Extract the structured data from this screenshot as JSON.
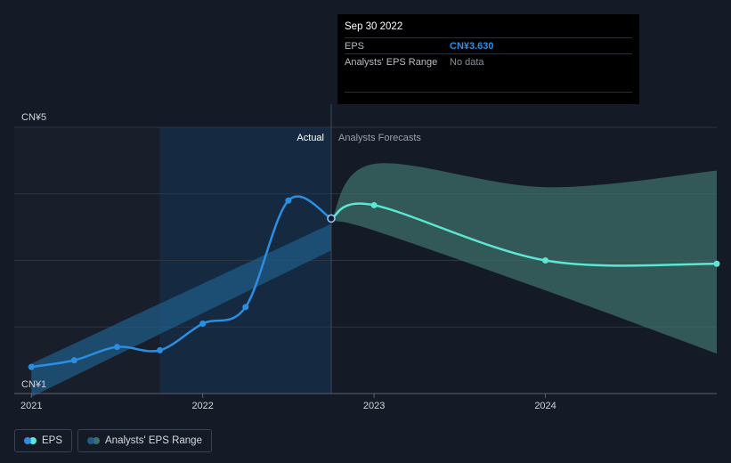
{
  "tooltip": {
    "date": "Sep 30 2022",
    "eps_label": "EPS",
    "eps_value": "CN¥3.630",
    "range_label": "Analysts' EPS Range",
    "range_value": "No data"
  },
  "labels": {
    "actual": "Actual",
    "forecast": "Analysts Forecasts"
  },
  "legend": [
    {
      "label": "EPS",
      "colors": [
        "#2b8ee0",
        "#5ce6d3"
      ]
    },
    {
      "label": "Analysts' EPS Range",
      "colors": [
        "#1f5b86",
        "#3c6f6a"
      ]
    }
  ],
  "colors": {
    "background": "#151b26",
    "eps_actual": "#2b8ee0",
    "eps_forecast": "#5ce6d3",
    "band_actual": "#1f5b86",
    "band_forecast": "#3c6f6a",
    "grid": "#2e3440"
  },
  "chart_data": {
    "type": "line",
    "y_tick_labels": [
      "CN¥5",
      "CN¥1"
    ],
    "ylim": [
      1,
      5
    ],
    "y_gridlines": [
      1,
      2,
      3,
      4,
      5
    ],
    "x_ticks": [
      "2021",
      "2022",
      "2023",
      "2024"
    ],
    "xlim": [
      2020.9,
      2025.0
    ],
    "split_x": 2022.75,
    "highlight_from_x": 2021.75,
    "series": [
      {
        "name": "EPS",
        "kind": "actual",
        "points": [
          [
            2021.0,
            1.4
          ],
          [
            2021.25,
            1.5
          ],
          [
            2021.5,
            1.7
          ],
          [
            2021.75,
            1.65
          ],
          [
            2022.0,
            2.05
          ],
          [
            2022.25,
            2.3
          ],
          [
            2022.5,
            3.9
          ],
          [
            2022.75,
            3.63
          ]
        ]
      },
      {
        "name": "EPS",
        "kind": "forecast",
        "points": [
          [
            2022.75,
            3.63
          ],
          [
            2023.0,
            3.83
          ],
          [
            2024.0,
            3.0
          ],
          [
            2025.0,
            2.95
          ]
        ]
      }
    ],
    "range_actual": {
      "name": "Analysts' EPS Range",
      "x": [
        2021.0,
        2022.75
      ],
      "upper": [
        1.45,
        3.55
      ],
      "lower": [
        0.95,
        3.15
      ]
    },
    "range_forecast": {
      "name": "Analysts' EPS Range",
      "x": [
        2022.75,
        2023.0,
        2024.0,
        2025.0
      ],
      "upper": [
        3.6,
        4.45,
        4.1,
        4.35
      ],
      "lower": [
        3.6,
        3.45,
        2.55,
        1.6
      ]
    }
  }
}
